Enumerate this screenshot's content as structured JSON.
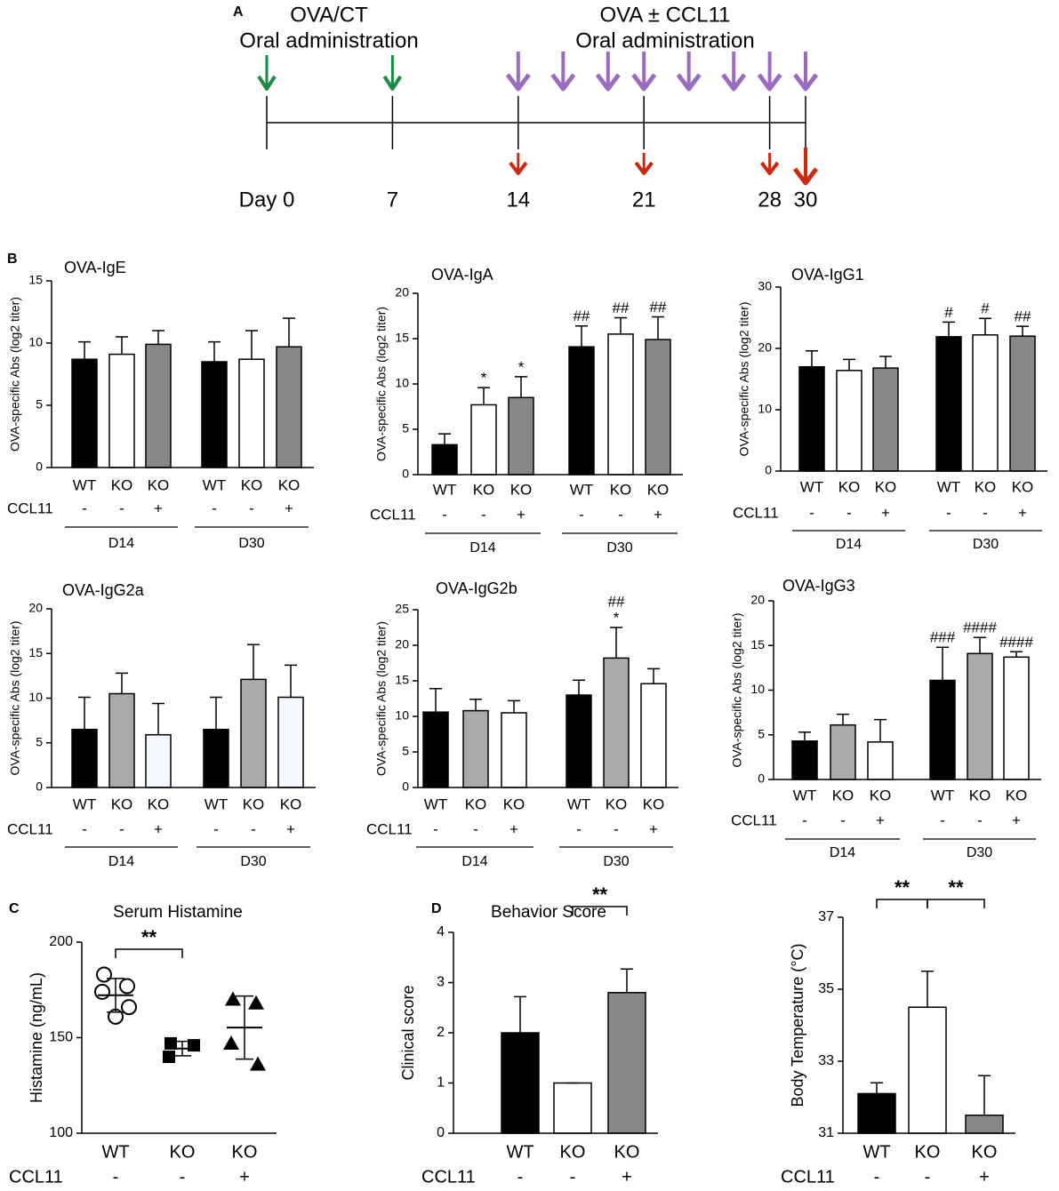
{
  "timeline": {
    "panel_label": "A",
    "left_text": [
      "OVA/CT",
      "Oral administration"
    ],
    "right_text": [
      "OVA ± CCL11",
      "Oral administration"
    ],
    "days": [
      {
        "value": 0,
        "label": "Day 0"
      },
      7,
      14,
      21,
      28,
      30
    ],
    "green_arrows": [
      0,
      7
    ],
    "purple_arrows": [
      14,
      16.5,
      19,
      21,
      23.5,
      26,
      28,
      30
    ],
    "red_arrows": [
      14,
      21,
      28,
      30
    ],
    "green": "#1a8a44",
    "purple": "#9b6bc0",
    "red": "#cc2a10"
  },
  "chart_data": [
    {
      "type": "bar",
      "panel_label": "B",
      "title": "OVA-IgE",
      "ylabel": "OVA-specific Abs (log2 titer)",
      "ylim": [
        0,
        15
      ],
      "yticks": [
        0,
        5,
        10,
        15
      ],
      "categories": [
        "WT",
        "KO",
        "KO",
        "WT",
        "KO",
        "KO"
      ],
      "row_label": "CCL11",
      "treatment": [
        "-",
        "-",
        "+",
        "-",
        "-",
        "+"
      ],
      "groups": [
        "D14",
        "D30"
      ],
      "values": [
        8.7,
        9.1,
        9.9,
        8.5,
        8.7,
        9.7
      ],
      "errors": [
        1.4,
        1.4,
        1.1,
        1.6,
        2.3,
        2.3
      ],
      "colors": [
        "#000000",
        "#ffffff",
        "#888888",
        "#000000",
        "#ffffff",
        "#888888"
      ]
    },
    {
      "type": "bar",
      "title": "OVA-IgA",
      "ylabel": "OVA-specific Abs (log2 titer)",
      "ylim": [
        0,
        20
      ],
      "yticks": [
        0,
        5,
        10,
        15,
        20
      ],
      "categories": [
        "WT",
        "KO",
        "KO",
        "WT",
        "KO",
        "KO"
      ],
      "row_label": "CCL11",
      "treatment": [
        "-",
        "-",
        "+",
        "-",
        "-",
        "+"
      ],
      "groups": [
        "D14",
        "D30"
      ],
      "values": [
        3.3,
        7.7,
        8.5,
        14.1,
        15.5,
        14.9
      ],
      "errors": [
        1.2,
        1.9,
        2.3,
        2.3,
        1.8,
        2.5
      ],
      "colors": [
        "#000000",
        "#ffffff",
        "#888888",
        "#000000",
        "#ffffff",
        "#888888"
      ],
      "annotations": [
        null,
        [
          "*"
        ],
        [
          "*"
        ],
        [
          "##"
        ],
        [
          "##"
        ],
        [
          "##"
        ]
      ]
    },
    {
      "type": "bar",
      "title": "OVA-IgG1",
      "ylabel": "OVA-specific Abs (log2 titer)",
      "ylim": [
        0,
        30
      ],
      "yticks": [
        0,
        10,
        20,
        30
      ],
      "categories": [
        "WT",
        "KO",
        "KO",
        "WT",
        "KO",
        "KO"
      ],
      "row_label": "CCL11",
      "treatment": [
        "-",
        "-",
        "+",
        "-",
        "-",
        "+"
      ],
      "groups": [
        "D14",
        "D30"
      ],
      "values": [
        17,
        16.4,
        16.8,
        21.9,
        22.2,
        22
      ],
      "errors": [
        2.6,
        1.8,
        1.9,
        2.4,
        2.7,
        1.6
      ],
      "colors": [
        "#000000",
        "#ffffff",
        "#888888",
        "#000000",
        "#ffffff",
        "#888888"
      ],
      "annotations": [
        null,
        null,
        null,
        [
          "#"
        ],
        [
          "#"
        ],
        [
          "##"
        ]
      ]
    },
    {
      "type": "bar",
      "title": "OVA-IgG2a",
      "ylabel": "OVA-specific Abs (log2 titer)",
      "ylim": [
        0,
        20
      ],
      "yticks": [
        0,
        5,
        10,
        15,
        20
      ],
      "categories": [
        "WT",
        "KO",
        "KO",
        "WT",
        "KO",
        "KO"
      ],
      "row_label": "CCL11",
      "treatment": [
        "-",
        "-",
        "+",
        "-",
        "-",
        "+"
      ],
      "groups": [
        "D14",
        "D30"
      ],
      "values": [
        6.5,
        10.5,
        5.9,
        6.5,
        12.1,
        10.1
      ],
      "errors": [
        3.6,
        2.3,
        3.5,
        3.6,
        3.9,
        3.6
      ],
      "colors": [
        "#000000",
        "#aaaaaa",
        "#f4f8ff",
        "#000000",
        "#aaaaaa",
        "#f4f8ff"
      ]
    },
    {
      "type": "bar",
      "title": "OVA-IgG2b",
      "ylabel": "OVA-specific Abs (log2 titer)",
      "ylim": [
        0,
        25
      ],
      "yticks": [
        0,
        5,
        10,
        15,
        20,
        25
      ],
      "categories": [
        "WT",
        "KO",
        "KO",
        "WT",
        "KO",
        "KO"
      ],
      "row_label": "CCL11",
      "treatment": [
        "-",
        "-",
        "+",
        "-",
        "-",
        "+"
      ],
      "groups": [
        "D14",
        "D30"
      ],
      "values": [
        10.6,
        10.8,
        10.5,
        13,
        18.2,
        14.6
      ],
      "errors": [
        3.3,
        1.6,
        1.7,
        2.1,
        4.3,
        2.1
      ],
      "colors": [
        "#000000",
        "#aaaaaa",
        "#ffffff",
        "#000000",
        "#aaaaaa",
        "#ffffff"
      ],
      "annotations": [
        null,
        null,
        null,
        null,
        [
          "##",
          "*"
        ],
        null
      ]
    },
    {
      "type": "bar",
      "title": "OVA-IgG3",
      "ylabel": "OVA-specific Abs (log2 titer)",
      "ylim": [
        0,
        20
      ],
      "yticks": [
        0,
        5,
        10,
        15,
        20
      ],
      "categories": [
        "WT",
        "KO",
        "KO",
        "WT",
        "KO",
        "KO"
      ],
      "row_label": "CCL11",
      "treatment": [
        "-",
        "-",
        "+",
        "-",
        "-",
        "+"
      ],
      "groups": [
        "D14",
        "D30"
      ],
      "values": [
        4.3,
        6.1,
        4.2,
        11.1,
        14.1,
        13.7
      ],
      "errors": [
        1.0,
        1.2,
        2.5,
        3.7,
        1.8,
        0.6
      ],
      "colors": [
        "#000000",
        "#aaaaaa",
        "#ffffff",
        "#000000",
        "#aaaaaa",
        "#ffffff"
      ],
      "annotations": [
        null,
        null,
        null,
        [
          "###"
        ],
        [
          "####"
        ],
        [
          "####"
        ]
      ]
    },
    {
      "type": "scatter",
      "panel_label": "C",
      "title": "Serum Histamine",
      "ylabel": "Histamine (ng/mL)",
      "ylim": [
        100,
        200
      ],
      "yticks": [
        100,
        150,
        200
      ],
      "categories": [
        "WT",
        "KO",
        "KO"
      ],
      "row_label": "CCL11",
      "treatment": [
        "-",
        "-",
        "+"
      ],
      "points": [
        [
          183,
          177,
          174,
          166,
          161
        ],
        [
          147,
          146,
          140
        ],
        [
          170,
          168,
          147,
          136
        ]
      ],
      "means": [
        172.2,
        144.3,
        155.3
      ],
      "sds": [
        8.8,
        3.8,
        16.5
      ],
      "markers": [
        "open-circle",
        "square",
        "triangle"
      ],
      "color": "#000000",
      "brackets": [
        {
          "from": 0,
          "to": 1,
          "label": "**"
        }
      ]
    },
    {
      "type": "bar",
      "panel_label": "D",
      "title": "Behavior Score",
      "ylabel": "Clinical score",
      "ylim": [
        0,
        4
      ],
      "yticks": [
        0,
        1,
        2,
        3,
        4
      ],
      "categories": [
        "WT",
        "KO",
        "KO"
      ],
      "row_label": "CCL11",
      "treatment": [
        "-",
        "-",
        "+"
      ],
      "values": [
        2,
        1,
        2.8
      ],
      "errors": [
        0.72,
        0,
        0.47
      ],
      "colors": [
        "#000000",
        "#ffffff",
        "#888888"
      ],
      "brackets": [
        {
          "from": 1,
          "to": 2,
          "label": "**"
        }
      ]
    },
    {
      "type": "bar",
      "ylabel": "Body Temperature (°C)",
      "ylim": [
        31,
        37
      ],
      "yticks": [
        31,
        33,
        35,
        37
      ],
      "categories": [
        "WT",
        "KO",
        "KO"
      ],
      "row_label": "CCL11",
      "treatment": [
        "-",
        "-",
        "+"
      ],
      "values": [
        32.1,
        34.5,
        31.5
      ],
      "errors": [
        0.3,
        1.0,
        1.1
      ],
      "colors": [
        "#000000",
        "#ffffff",
        "#888888"
      ],
      "brackets": [
        {
          "from": 0,
          "to": 1,
          "label": "**"
        },
        {
          "from": 1,
          "to": 2,
          "label": "**"
        }
      ]
    }
  ]
}
